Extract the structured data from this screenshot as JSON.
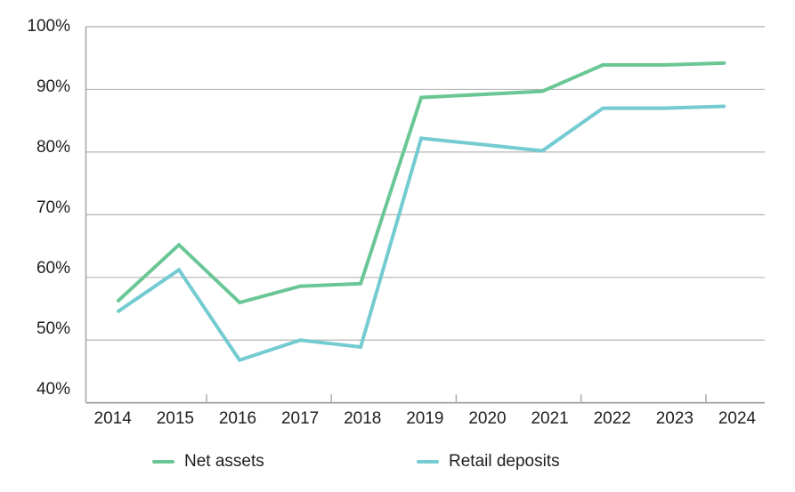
{
  "chart_data": {
    "type": "line",
    "title": "",
    "x": [
      "2014",
      "2015",
      "2016",
      "2017",
      "2018",
      "2019",
      "2020",
      "2021",
      "2022",
      "2023",
      "2024"
    ],
    "series": [
      {
        "name": "Net assets",
        "color": "#6AC795",
        "values": [
          56.3,
          65.2,
          56.0,
          58.6,
          59.0,
          88.7,
          89.2,
          89.7,
          93.9,
          93.9,
          94.2
        ]
      },
      {
        "name": "Retail deposits",
        "color": "#74CBD1",
        "values": [
          54.6,
          61.2,
          46.8,
          50.0,
          48.9,
          82.2,
          81.2,
          80.2,
          87.0,
          87.0,
          87.3
        ]
      }
    ],
    "ylim": [
      40,
      100
    ],
    "y_tick_step": 10,
    "y_tick_labels": [
      "40%",
      "50%",
      "60%",
      "70%",
      "80%",
      "90%",
      "100%"
    ],
    "x_minor_tick_positions": [
      2015.5,
      2017.5,
      2019.5,
      2021.5,
      2023.5
    ],
    "x_range_start_year": 2014,
    "grid": "horizontal",
    "legend_position": "bottom",
    "colors": {
      "gridline": "#B5B5B5",
      "top_border": "#CDCDCD",
      "axis": "#9E9E9E",
      "tick": "#ABABAB",
      "text": "#202020",
      "background": "#FFFFFF"
    }
  }
}
